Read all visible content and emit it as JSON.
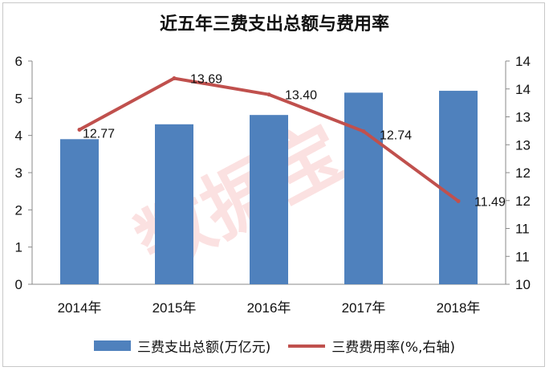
{
  "colors": {
    "bar": "#4f81bd",
    "line": "#c0504d",
    "axis": "#888888"
  },
  "watermark": "数据宝",
  "chart_data": {
    "type": "bar",
    "title": "近五年三费支出总额与费用率",
    "categories": [
      "2014年",
      "2015年",
      "2016年",
      "2017年",
      "2018年"
    ],
    "series": [
      {
        "name": "三费支出总额(万亿元)",
        "type": "bar",
        "axis": "left",
        "values": [
          3.9,
          4.3,
          4.55,
          5.15,
          5.2
        ]
      },
      {
        "name": "三费费用率(%,右轴)",
        "type": "line",
        "axis": "right",
        "values": [
          12.77,
          13.69,
          13.4,
          12.74,
          11.49
        ],
        "data_labels": [
          "12.77",
          "13.69",
          "13.40",
          "12.74",
          "11.49"
        ]
      }
    ],
    "ylim": [
      0,
      6
    ],
    "y_ticks": [
      "0",
      "1",
      "2",
      "3",
      "4",
      "5",
      "6"
    ],
    "y2lim": [
      10,
      14
    ],
    "y2_ticks": [
      "10",
      "11",
      "11",
      "12",
      "12",
      "13",
      "13",
      "14",
      "14"
    ],
    "legend_position": "bottom",
    "grid": false
  }
}
